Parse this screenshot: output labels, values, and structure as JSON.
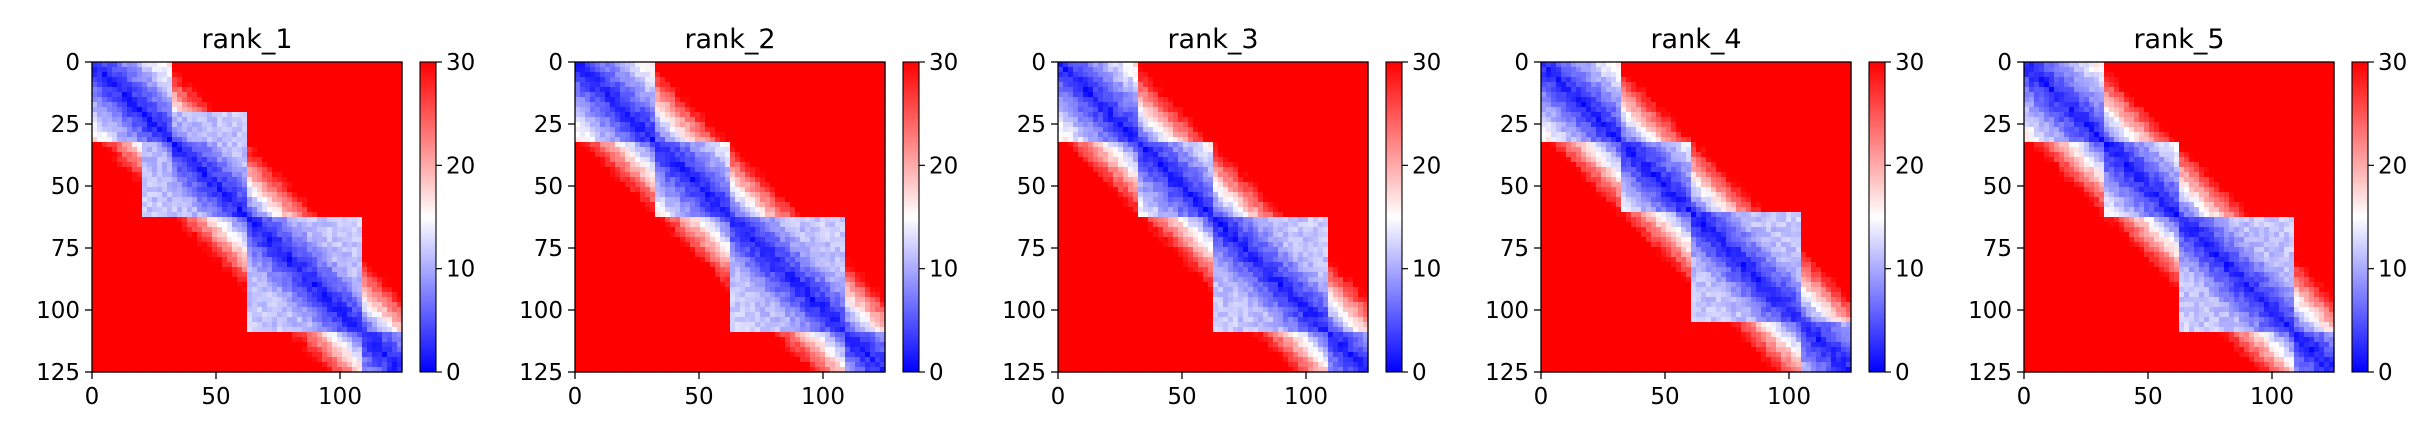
{
  "chart_data": [
    {
      "type": "heatmap",
      "title": "rank_1",
      "x_ticks": [
        "0",
        "50",
        "100"
      ],
      "y_ticks": [
        "0",
        "25",
        "50",
        "75",
        "100",
        "125"
      ],
      "xlim": [
        0,
        125
      ],
      "ylim": [
        125,
        0
      ],
      "colorbar": {
        "ticks": [
          "0",
          "10",
          "20",
          "30"
        ],
        "range": [
          0,
          30
        ],
        "colormap": "bwr"
      },
      "colors": {
        "low": "#0000ff",
        "mid": "#ffffff",
        "high": "#ff0000"
      },
      "domain_breaks": [
        33,
        62,
        108
      ],
      "contact_blocks": [
        [
          62,
          108
        ],
        [
          20,
          62
        ]
      ]
    },
    {
      "type": "heatmap",
      "title": "rank_2",
      "x_ticks": [
        "0",
        "50",
        "100"
      ],
      "y_ticks": [
        "0",
        "25",
        "50",
        "75",
        "100",
        "125"
      ],
      "xlim": [
        0,
        125
      ],
      "ylim": [
        125,
        0
      ],
      "colorbar": {
        "ticks": [
          "0",
          "10",
          "20",
          "30"
        ],
        "range": [
          0,
          30
        ],
        "colormap": "bwr"
      },
      "colors": {
        "low": "#0000ff",
        "mid": "#ffffff",
        "high": "#ff0000"
      },
      "domain_breaks": [
        33,
        62,
        108
      ],
      "contact_blocks": [
        [
          62,
          108
        ]
      ]
    },
    {
      "type": "heatmap",
      "title": "rank_3",
      "x_ticks": [
        "0",
        "50",
        "100"
      ],
      "y_ticks": [
        "0",
        "25",
        "50",
        "75",
        "100",
        "125"
      ],
      "xlim": [
        0,
        125
      ],
      "ylim": [
        125,
        0
      ],
      "colorbar": {
        "ticks": [
          "0",
          "10",
          "20",
          "30"
        ],
        "range": [
          0,
          30
        ],
        "colormap": "bwr"
      },
      "colors": {
        "low": "#0000ff",
        "mid": "#ffffff",
        "high": "#ff0000"
      },
      "domain_breaks": [
        33,
        62,
        108
      ],
      "contact_blocks": [
        [
          62,
          108
        ]
      ]
    },
    {
      "type": "heatmap",
      "title": "rank_4",
      "x_ticks": [
        "0",
        "50",
        "100"
      ],
      "y_ticks": [
        "0",
        "25",
        "50",
        "75",
        "100",
        "125"
      ],
      "xlim": [
        0,
        125
      ],
      "ylim": [
        125,
        0
      ],
      "colorbar": {
        "ticks": [
          "0",
          "10",
          "20",
          "30"
        ],
        "range": [
          0,
          30
        ],
        "colormap": "bwr"
      },
      "colors": {
        "low": "#0000ff",
        "mid": "#ffffff",
        "high": "#ff0000"
      },
      "domain_breaks": [
        33,
        60,
        104
      ],
      "contact_blocks": [
        [
          60,
          104
        ]
      ]
    },
    {
      "type": "heatmap",
      "title": "rank_5",
      "x_ticks": [
        "0",
        "50",
        "100"
      ],
      "y_ticks": [
        "0",
        "25",
        "50",
        "75",
        "100",
        "125"
      ],
      "xlim": [
        0,
        125
      ],
      "ylim": [
        125,
        0
      ],
      "colorbar": {
        "ticks": [
          "0",
          "10",
          "20",
          "30"
        ],
        "range": [
          0,
          30
        ],
        "colormap": "bwr"
      },
      "colors": {
        "low": "#0000ff",
        "mid": "#ffffff",
        "high": "#ff0000"
      },
      "domain_breaks": [
        33,
        62,
        108
      ],
      "contact_blocks": [
        [
          62,
          108
        ]
      ]
    }
  ]
}
